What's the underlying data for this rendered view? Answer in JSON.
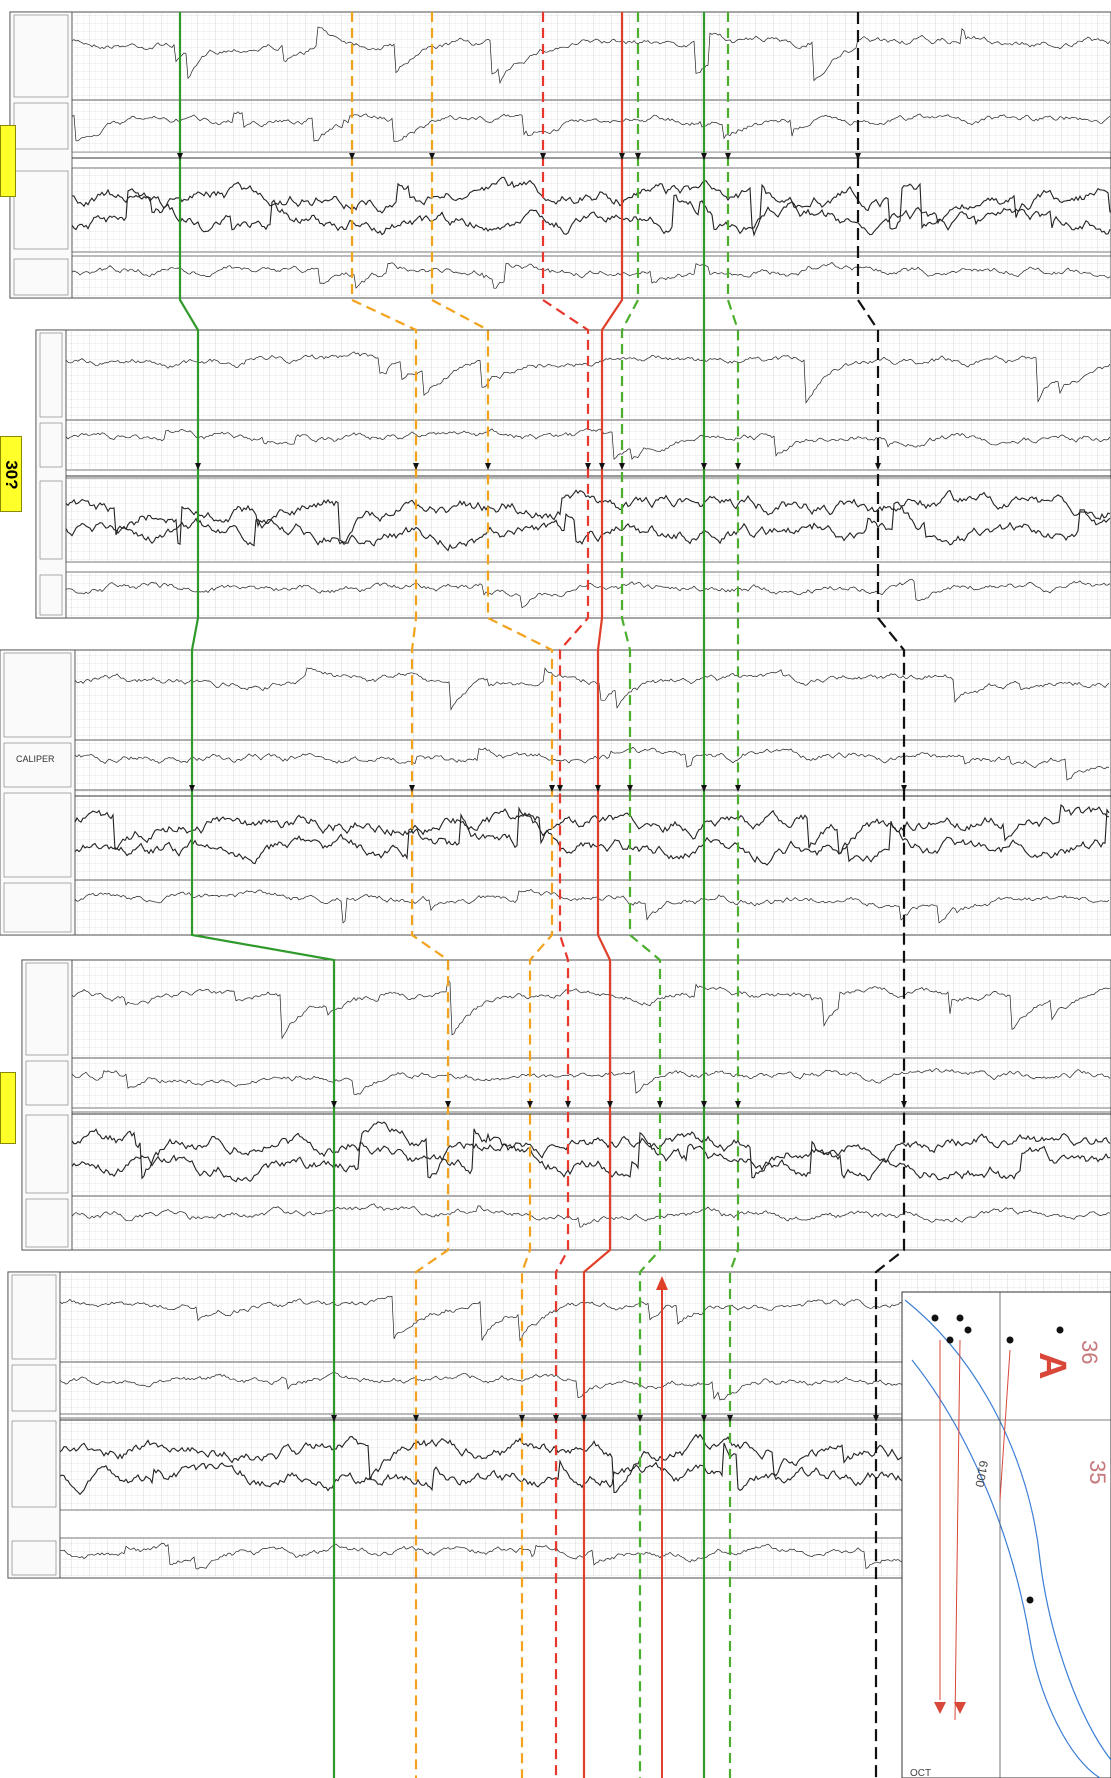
{
  "well_tag": "30?",
  "map_inset_labels": [
    "36",
    "35",
    "6100",
    "OCT"
  ],
  "panel_header_labels": [
    "CALIPER"
  ],
  "correlation_colors": {
    "green_solid": "#2f9a2a",
    "orange_dash": "#f2a21c",
    "red_dash": "#e8372c",
    "red_solid": "#e0402a",
    "green_dash": "#4cae2e",
    "black_dash": "#111111",
    "highlight": "#ffff2a",
    "map_blue": "#3d7fd6",
    "map_red": "#d9473a"
  }
}
